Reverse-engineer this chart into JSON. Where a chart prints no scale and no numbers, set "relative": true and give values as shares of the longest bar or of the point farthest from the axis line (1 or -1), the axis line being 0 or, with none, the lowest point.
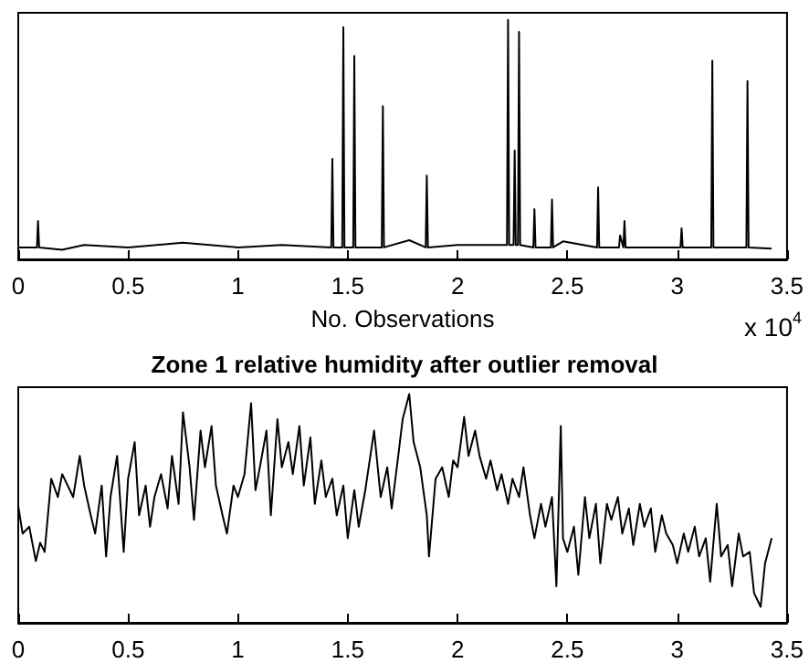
{
  "chart_data": [
    {
      "type": "line",
      "xlabel": "No. Observations",
      "annotations": [
        "x 10$^{4}$"
      ],
      "relative": true,
      "xlim": [
        0,
        3.5
      ],
      "xticks": [
        0,
        0.5,
        1,
        1.5,
        2,
        2.5,
        3,
        3.5
      ],
      "series": [
        {
          "color": "#000000",
          "x": [
            0,
            0.05,
            0.085,
            0.09,
            0.095,
            0.2,
            0.3,
            0.5,
            0.75,
            1.0,
            1.2,
            1.425,
            1.43,
            1.435,
            1.475,
            1.48,
            1.485,
            1.525,
            1.53,
            1.535,
            1.655,
            1.66,
            1.665,
            1.78,
            1.855,
            1.86,
            1.865,
            2.0,
            2.225,
            2.23,
            2.235,
            2.255,
            2.26,
            2.265,
            2.275,
            2.28,
            2.285,
            2.345,
            2.35,
            2.355,
            2.425,
            2.43,
            2.435,
            2.48,
            2.635,
            2.64,
            2.645,
            2.735,
            2.74,
            2.755,
            2.76,
            2.765,
            3.015,
            3.02,
            3.025,
            3.155,
            3.16,
            3.165,
            3.315,
            3.32,
            3.325,
            3.43
          ],
          "values": [
            0.05,
            0.05,
            0.05,
            0.16,
            0.05,
            0.04,
            0.06,
            0.05,
            0.07,
            0.05,
            0.06,
            0.05,
            0.42,
            0.05,
            0.05,
            0.97,
            0.05,
            0.05,
            0.85,
            0.05,
            0.05,
            0.64,
            0.05,
            0.08,
            0.05,
            0.35,
            0.05,
            0.06,
            0.06,
            1,
            0.06,
            0.06,
            0.455,
            0.06,
            0.06,
            0.95,
            0.06,
            0.05,
            0.21,
            0.05,
            0.05,
            0.25,
            0.05,
            0.075,
            0.05,
            0.3,
            0.05,
            0.05,
            0.1,
            0.05,
            0.16,
            0.05,
            0.05,
            0.13,
            0.05,
            0.05,
            0.83,
            0.05,
            0.05,
            0.745,
            0.05,
            0.045
          ]
        }
      ]
    },
    {
      "type": "line",
      "title": "Zone 1 relative humidity after outlier removal",
      "relative": true,
      "xlim": [
        0,
        3.5
      ],
      "xticks": [
        0,
        0.5,
        1,
        1.5,
        2,
        2.5,
        3,
        3.5
      ],
      "series": [
        {
          "color": "#000000",
          "x": [
            0,
            0.02,
            0.05,
            0.08,
            0.1,
            0.12,
            0.15,
            0.18,
            0.2,
            0.25,
            0.28,
            0.3,
            0.33,
            0.35,
            0.38,
            0.4,
            0.42,
            0.45,
            0.48,
            0.5,
            0.53,
            0.55,
            0.58,
            0.6,
            0.62,
            0.65,
            0.68,
            0.7,
            0.73,
            0.75,
            0.78,
            0.8,
            0.83,
            0.85,
            0.88,
            0.9,
            0.93,
            0.95,
            0.98,
            1.0,
            1.03,
            1.06,
            1.08,
            1.1,
            1.13,
            1.15,
            1.18,
            1.2,
            1.23,
            1.25,
            1.28,
            1.3,
            1.33,
            1.35,
            1.38,
            1.4,
            1.43,
            1.45,
            1.48,
            1.5,
            1.53,
            1.55,
            1.58,
            1.6,
            1.62,
            1.65,
            1.68,
            1.7,
            1.73,
            1.75,
            1.78,
            1.8,
            1.83,
            1.86,
            1.87,
            1.9,
            1.93,
            1.96,
            1.98,
            2.0,
            2.03,
            2.05,
            2.08,
            2.1,
            2.13,
            2.15,
            2.18,
            2.2,
            2.23,
            2.25,
            2.28,
            2.3,
            2.33,
            2.35,
            2.38,
            2.4,
            2.43,
            2.45,
            2.47,
            2.48,
            2.5,
            2.53,
            2.55,
            2.58,
            2.6,
            2.63,
            2.65,
            2.68,
            2.7,
            2.73,
            2.75,
            2.78,
            2.8,
            2.83,
            2.85,
            2.88,
            2.9,
            2.93,
            2.95,
            2.98,
            3.0,
            3.03,
            3.05,
            3.08,
            3.1,
            3.13,
            3.15,
            3.18,
            3.2,
            3.23,
            3.25,
            3.28,
            3.3,
            3.33,
            3.35,
            3.38,
            3.4,
            3.43
          ],
          "values": [
            0.51,
            0.39,
            0.42,
            0.27,
            0.35,
            0.31,
            0.63,
            0.55,
            0.65,
            0.55,
            0.73,
            0.6,
            0.47,
            0.39,
            0.6,
            0.29,
            0.55,
            0.73,
            0.31,
            0.63,
            0.79,
            0.47,
            0.6,
            0.42,
            0.55,
            0.65,
            0.5,
            0.73,
            0.52,
            0.92,
            0.68,
            0.45,
            0.84,
            0.68,
            0.86,
            0.6,
            0.47,
            0.39,
            0.6,
            0.55,
            0.65,
            0.96,
            0.58,
            0.68,
            0.84,
            0.47,
            0.89,
            0.68,
            0.79,
            0.65,
            0.86,
            0.6,
            0.81,
            0.52,
            0.71,
            0.55,
            0.63,
            0.47,
            0.6,
            0.37,
            0.58,
            0.42,
            0.58,
            0.71,
            0.84,
            0.55,
            0.68,
            0.5,
            0.73,
            0.89,
            1,
            0.79,
            0.68,
            0.47,
            0.29,
            0.63,
            0.68,
            0.55,
            0.71,
            0.68,
            0.9,
            0.73,
            0.84,
            0.73,
            0.63,
            0.71,
            0.58,
            0.65,
            0.52,
            0.63,
            0.55,
            0.68,
            0.47,
            0.37,
            0.52,
            0.42,
            0.55,
            0.16,
            0.86,
            0.37,
            0.31,
            0.42,
            0.21,
            0.55,
            0.37,
            0.52,
            0.26,
            0.52,
            0.45,
            0.55,
            0.39,
            0.5,
            0.34,
            0.52,
            0.42,
            0.5,
            0.31,
            0.47,
            0.39,
            0.34,
            0.26,
            0.39,
            0.31,
            0.42,
            0.29,
            0.37,
            0.18,
            0.52,
            0.29,
            0.34,
            0.16,
            0.39,
            0.29,
            0.31,
            0.13,
            0.07,
            0.26,
            0.37
          ]
        }
      ]
    }
  ]
}
